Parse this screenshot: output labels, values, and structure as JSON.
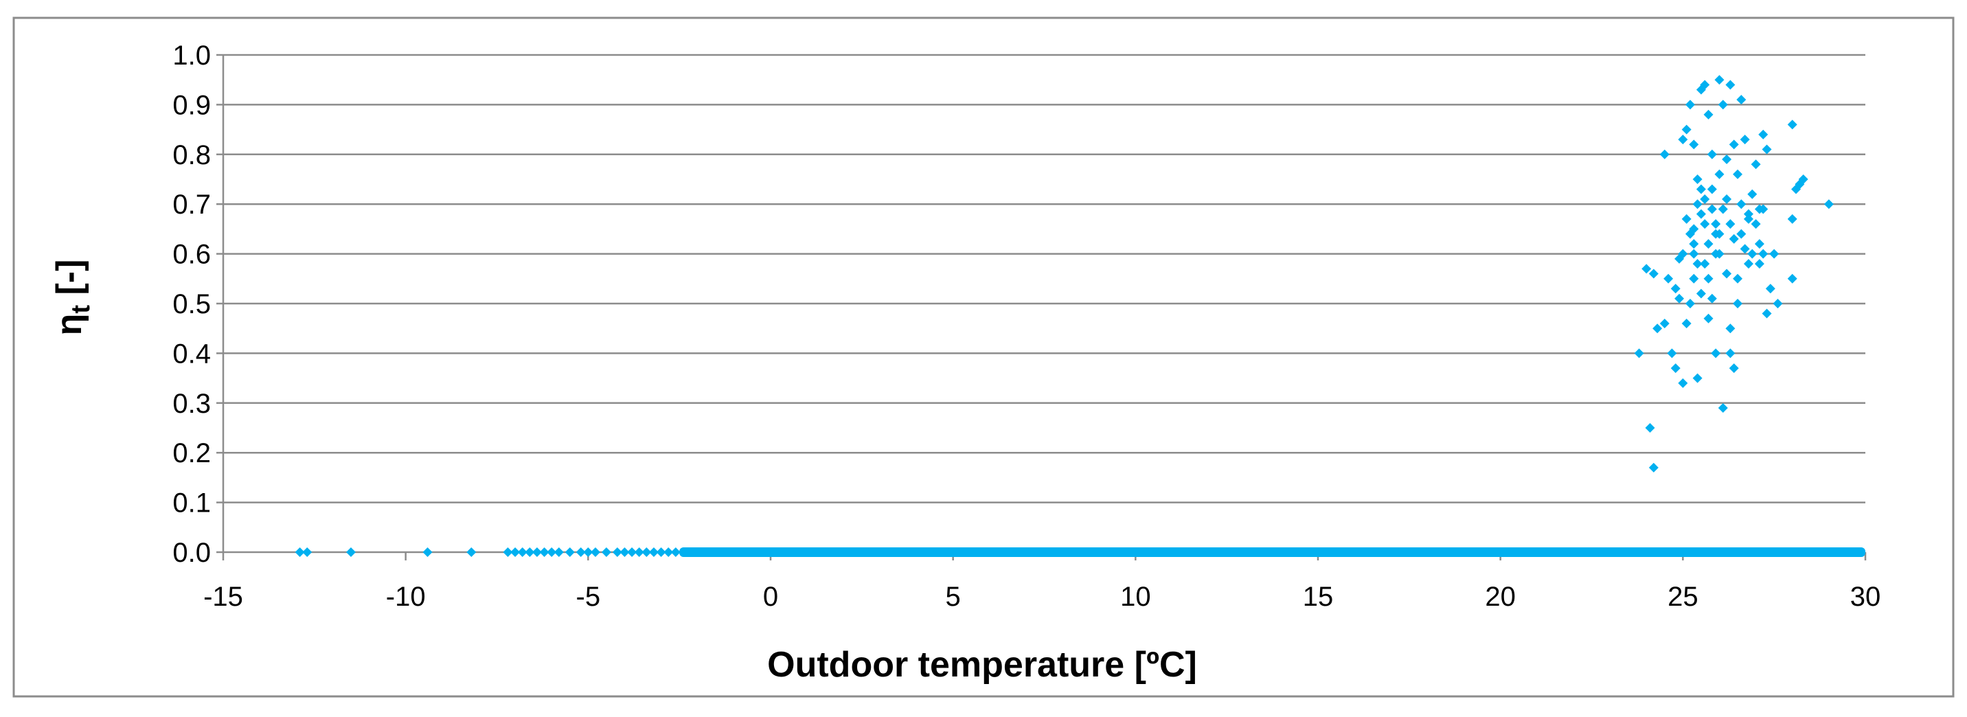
{
  "chart_data": {
    "type": "scatter",
    "title": "",
    "xlabel": "Outdoor temperature [ºC]",
    "ylabel_main": "η",
    "ylabel_sub": "t",
    "ylabel_rest": " [-]",
    "xlim": [
      -15,
      30
    ],
    "ylim": [
      0,
      1.0
    ],
    "x_ticks": [
      -15,
      -10,
      -5,
      0,
      5,
      10,
      15,
      20,
      25,
      30
    ],
    "x_tick_labels": [
      "-15",
      "-10",
      "-5",
      "0",
      "5",
      "10",
      "15",
      "20",
      "25",
      "30"
    ],
    "y_ticks": [
      0,
      0.1,
      0.2,
      0.3,
      0.4,
      0.5,
      0.6,
      0.7,
      0.8,
      0.9,
      1.0
    ],
    "y_tick_labels": [
      "0.0",
      "0.1",
      "0.2",
      "0.3",
      "0.4",
      "0.5",
      "0.6",
      "0.7",
      "0.8",
      "0.9",
      "1.0"
    ],
    "grid": true,
    "legend": "none",
    "marker_color": "#00B0F0",
    "series": [
      {
        "points": [
          [
            -12.9,
            0.0
          ],
          [
            -12.7,
            0.0
          ],
          [
            -11.5,
            0.0
          ],
          [
            -9.4,
            0.0
          ],
          [
            -8.2,
            0.0
          ],
          [
            -7.2,
            0.0
          ],
          [
            -7.0,
            0.0
          ],
          [
            -6.8,
            0.0
          ],
          [
            -6.6,
            0.0
          ],
          [
            -6.4,
            0.0
          ],
          [
            -6.2,
            0.0
          ],
          [
            -6.0,
            0.0
          ],
          [
            -5.8,
            0.0
          ],
          [
            -5.5,
            0.0
          ],
          [
            -5.2,
            0.0
          ],
          [
            -5.0,
            0.0
          ],
          [
            -4.8,
            0.0
          ],
          [
            -4.5,
            0.0
          ],
          [
            -4.2,
            0.0
          ],
          [
            -4.0,
            0.0
          ],
          [
            -3.8,
            0.0
          ],
          [
            -3.6,
            0.0
          ],
          [
            -3.4,
            0.0
          ],
          [
            -3.2,
            0.0
          ],
          [
            -3.0,
            0.0
          ],
          [
            -2.8,
            0.0
          ],
          [
            -2.6,
            0.0
          ],
          [
            24.0,
            0.57
          ],
          [
            24.2,
            0.56
          ],
          [
            24.3,
            0.45
          ],
          [
            24.1,
            0.25
          ],
          [
            24.2,
            0.17
          ],
          [
            23.8,
            0.4
          ],
          [
            24.5,
            0.8
          ],
          [
            24.6,
            0.55
          ],
          [
            24.5,
            0.46
          ],
          [
            24.8,
            0.37
          ],
          [
            24.7,
            0.4
          ],
          [
            25.0,
            0.34
          ],
          [
            24.8,
            0.53
          ],
          [
            24.9,
            0.59
          ],
          [
            25.0,
            0.83
          ],
          [
            25.1,
            0.85
          ],
          [
            25.2,
            0.9
          ],
          [
            25.3,
            0.82
          ],
          [
            25.1,
            0.67
          ],
          [
            25.2,
            0.64
          ],
          [
            25.3,
            0.6
          ],
          [
            25.4,
            0.7
          ],
          [
            25.2,
            0.5
          ],
          [
            25.3,
            0.55
          ],
          [
            25.5,
            0.93
          ],
          [
            25.6,
            0.94
          ],
          [
            25.4,
            0.75
          ],
          [
            25.5,
            0.73
          ],
          [
            25.6,
            0.71
          ],
          [
            25.7,
            0.88
          ],
          [
            25.8,
            0.8
          ],
          [
            25.9,
            0.66
          ],
          [
            25.7,
            0.62
          ],
          [
            25.6,
            0.58
          ],
          [
            25.5,
            0.52
          ],
          [
            25.4,
            0.35
          ],
          [
            25.8,
            0.51
          ],
          [
            25.9,
            0.4
          ],
          [
            25.7,
            0.47
          ],
          [
            26.0,
            0.95
          ],
          [
            26.1,
            0.9
          ],
          [
            26.0,
            0.76
          ],
          [
            26.2,
            0.79
          ],
          [
            26.1,
            0.69
          ],
          [
            26.0,
            0.64
          ],
          [
            25.9,
            0.6
          ],
          [
            26.2,
            0.56
          ],
          [
            26.1,
            0.29
          ],
          [
            26.3,
            0.94
          ],
          [
            26.4,
            0.82
          ],
          [
            26.5,
            0.76
          ],
          [
            26.3,
            0.66
          ],
          [
            26.4,
            0.63
          ],
          [
            26.5,
            0.5
          ],
          [
            26.6,
            0.91
          ],
          [
            26.7,
            0.83
          ],
          [
            26.6,
            0.7
          ],
          [
            26.8,
            0.68
          ],
          [
            26.7,
            0.61
          ],
          [
            26.3,
            0.45
          ],
          [
            26.4,
            0.37
          ],
          [
            26.3,
            0.4
          ],
          [
            26.8,
            0.67
          ],
          [
            26.9,
            0.72
          ],
          [
            27.0,
            0.78
          ],
          [
            27.1,
            0.69
          ],
          [
            27.2,
            0.84
          ],
          [
            27.3,
            0.81
          ],
          [
            27.1,
            0.58
          ],
          [
            27.2,
            0.6
          ],
          [
            27.3,
            0.48
          ],
          [
            27.4,
            0.53
          ],
          [
            27.5,
            0.6
          ],
          [
            27.6,
            0.5
          ],
          [
            27.0,
            0.66
          ],
          [
            27.1,
            0.62
          ],
          [
            25.1,
            0.46
          ],
          [
            25.3,
            0.62
          ],
          [
            28.0,
            0.86
          ],
          [
            28.1,
            0.73
          ],
          [
            28.3,
            0.75
          ],
          [
            28.2,
            0.74
          ],
          [
            28.0,
            0.67
          ],
          [
            28.0,
            0.55
          ],
          [
            29.0,
            0.7
          ],
          [
            25.6,
            0.66
          ],
          [
            25.8,
            0.73
          ],
          [
            25.9,
            0.64
          ],
          [
            26.0,
            0.6
          ],
          [
            25.5,
            0.68
          ],
          [
            25.3,
            0.65
          ],
          [
            25.7,
            0.55
          ],
          [
            26.2,
            0.71
          ],
          [
            26.5,
            0.55
          ],
          [
            26.6,
            0.64
          ],
          [
            26.8,
            0.58
          ],
          [
            24.9,
            0.51
          ],
          [
            25.0,
            0.6
          ],
          [
            25.4,
            0.58
          ],
          [
            26.9,
            0.6
          ],
          [
            27.2,
            0.69
          ],
          [
            25.8,
            0.69
          ]
        ],
        "dense_zero_band": {
          "x_start": -2.5,
          "x_end": 30.0,
          "y": 0.0
        }
      }
    ]
  }
}
